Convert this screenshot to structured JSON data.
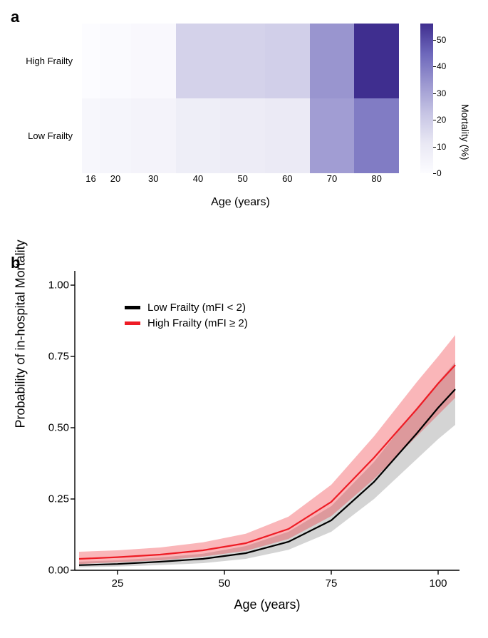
{
  "panelA": {
    "label": "a",
    "type": "heatmap",
    "yCategories": [
      "High Frailty",
      "Low Frailty"
    ],
    "xTicks": [
      16,
      20,
      30,
      40,
      50,
      60,
      70,
      80
    ],
    "xEdges": [
      14,
      18,
      25,
      35,
      45,
      55,
      65,
      75,
      85
    ],
    "values": {
      "High Frailty": [
        0,
        1,
        2,
        18,
        18,
        19,
        34,
        56
      ],
      "Low Frailty": [
        3,
        4,
        5,
        8,
        9,
        10,
        32,
        40
      ]
    },
    "xLabel": "Age (years)",
    "background": "#ffffff",
    "colorbar": {
      "min": 0,
      "max": 56,
      "ticks": [
        0,
        10,
        20,
        30,
        40,
        50
      ],
      "title": "Mortality (%)",
      "gradientStops": [
        {
          "pct": 0,
          "color": "#fcfcff"
        },
        {
          "pct": 20,
          "color": "#e9e8f4"
        },
        {
          "pct": 40,
          "color": "#c6c4e4"
        },
        {
          "pct": 60,
          "color": "#9b97d0"
        },
        {
          "pct": 80,
          "color": "#6d67bb"
        },
        {
          "pct": 100,
          "color": "#3f2e8f"
        }
      ]
    },
    "fontSizeTicks": 13,
    "fontSizeLabel": 16
  },
  "panelB": {
    "label": "b",
    "type": "line_with_ci",
    "xLabel": "Age (years)",
    "yLabel": "Probability of in-hospital Mortality",
    "xlim": [
      15,
      105
    ],
    "ylim": [
      0,
      1.05
    ],
    "xticks": [
      25,
      50,
      75,
      100
    ],
    "yticks": [
      0.0,
      0.25,
      0.5,
      0.75,
      1.0
    ],
    "background": "#ffffff",
    "legend": {
      "position": "upper-left",
      "entries": [
        {
          "color": "#000000",
          "label": "Low Frailty (mFI < 2)"
        },
        {
          "color": "#ee1c25",
          "label": "High Frailty (mFI ≥ 2)"
        }
      ]
    },
    "series": [
      {
        "name": "low",
        "color": "#000000",
        "bandColor": "#7a7a7a",
        "x": [
          16,
          25,
          35,
          45,
          55,
          65,
          75,
          85,
          95,
          100,
          104
        ],
        "y": [
          0.018,
          0.022,
          0.03,
          0.04,
          0.06,
          0.1,
          0.175,
          0.31,
          0.48,
          0.57,
          0.635
        ],
        "lo": [
          0.01,
          0.013,
          0.018,
          0.025,
          0.04,
          0.072,
          0.135,
          0.25,
          0.39,
          0.46,
          0.51
        ],
        "hi": [
          0.03,
          0.035,
          0.045,
          0.058,
          0.085,
          0.135,
          0.225,
          0.38,
          0.57,
          0.66,
          0.73
        ]
      },
      {
        "name": "high",
        "color": "#ee1c25",
        "bandColor": "#ee1c25",
        "x": [
          16,
          25,
          35,
          45,
          55,
          65,
          75,
          85,
          95,
          100,
          104
        ],
        "y": [
          0.04,
          0.046,
          0.055,
          0.07,
          0.095,
          0.145,
          0.24,
          0.395,
          0.565,
          0.655,
          0.72
        ],
        "lo": [
          0.022,
          0.028,
          0.035,
          0.048,
          0.068,
          0.11,
          0.19,
          0.32,
          0.47,
          0.545,
          0.605
        ],
        "hi": [
          0.065,
          0.07,
          0.08,
          0.098,
          0.128,
          0.188,
          0.3,
          0.47,
          0.66,
          0.75,
          0.825
        ]
      }
    ],
    "lineWidth": 2.2,
    "tickFont": 15,
    "labelFont": 18
  }
}
